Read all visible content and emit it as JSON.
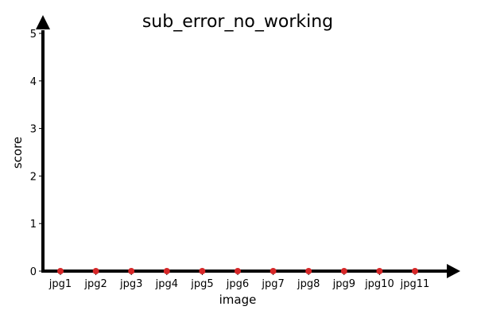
{
  "chart_data": {
    "type": "scatter",
    "title": "sub_error_no_working",
    "xlabel": "image",
    "ylabel": "score",
    "categories": [
      "jpg1",
      "jpg2",
      "jpg3",
      "jpg4",
      "jpg5",
      "jpg6",
      "jpg7",
      "jpg8",
      "jpg9",
      "jpg10",
      "jpg11"
    ],
    "values": [
      0,
      0,
      0,
      0,
      0,
      0,
      0,
      0,
      0,
      0,
      0
    ],
    "ylim": [
      0,
      5
    ],
    "yticks": [
      0,
      1,
      2,
      3,
      4,
      5
    ],
    "grid": false,
    "marker_color": "#d62728",
    "axis_color": "#000000"
  }
}
